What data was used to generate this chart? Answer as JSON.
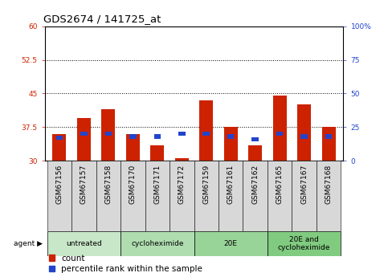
{
  "title": "GDS2674 / 141725_at",
  "samples": [
    "GSM67156",
    "GSM67157",
    "GSM67158",
    "GSM67170",
    "GSM67171",
    "GSM67172",
    "GSM67159",
    "GSM67161",
    "GSM67162",
    "GSM67165",
    "GSM67167",
    "GSM67168"
  ],
  "count_values": [
    36.0,
    39.5,
    41.5,
    36.0,
    33.5,
    30.5,
    43.5,
    37.5,
    33.5,
    44.5,
    42.5,
    37.5
  ],
  "percentile_values": [
    17,
    20,
    20,
    18,
    18,
    20,
    20,
    18,
    16,
    20,
    18,
    18
  ],
  "y_min": 30,
  "y_max": 60,
  "y_ticks_left": [
    30,
    37.5,
    45,
    52.5,
    60
  ],
  "y_ticks_right": [
    0,
    25,
    50,
    75,
    100
  ],
  "agent_groups": [
    {
      "label": "untreated",
      "start": 0,
      "end": 3,
      "color": "#c8e6c8"
    },
    {
      "label": "cycloheximide",
      "start": 3,
      "end": 6,
      "color": "#b0ddb0"
    },
    {
      "label": "20E",
      "start": 6,
      "end": 9,
      "color": "#98d498"
    },
    {
      "label": "20E and\ncycloheximide",
      "start": 9,
      "end": 12,
      "color": "#80cb80"
    }
  ],
  "count_color": "#cc2200",
  "percentile_color": "#2244cc",
  "bar_width": 0.55,
  "pct_bar_width": 0.28,
  "tick_label_fontsize": 6.5,
  "title_fontsize": 9.5,
  "legend_fontsize": 7.5,
  "agent_label": "agent",
  "legend_count": "count",
  "legend_percentile": "percentile rank within the sample",
  "xticklabel_gray": "#c8c8c8",
  "group_box_gray": "#d8d8d8",
  "dotted_yticks": [
    37.5,
    45,
    52.5
  ]
}
